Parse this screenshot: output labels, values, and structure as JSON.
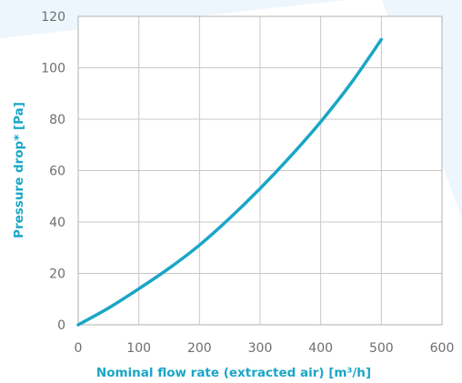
{
  "chart_data": {
    "type": "line",
    "xlabel": "Nominal flow rate (extracted air) [m³/h]",
    "ylabel": "Pressure drop* [Pa]",
    "xlim": [
      0,
      600
    ],
    "ylim": [
      0,
      120
    ],
    "x_ticks": [
      0,
      100,
      200,
      300,
      400,
      500,
      600
    ],
    "y_ticks": [
      0,
      20,
      40,
      60,
      80,
      100,
      120
    ],
    "grid": true,
    "legend": "none",
    "colors": {
      "series": "#1aa6c6",
      "axis_title": "#1aa6c6",
      "grid": "#c8c8c8",
      "frame": "#b0b0b0",
      "ticks": "#6e6e6e",
      "background_shape": "#edf6fc"
    },
    "series": [
      {
        "x": [
          0,
          50,
          100,
          150,
          200,
          250,
          300,
          350,
          400,
          450,
          500
        ],
        "y": [
          0,
          6.5,
          14,
          22,
          31,
          41.5,
          53,
          65.5,
          79,
          94,
          111
        ]
      }
    ]
  }
}
